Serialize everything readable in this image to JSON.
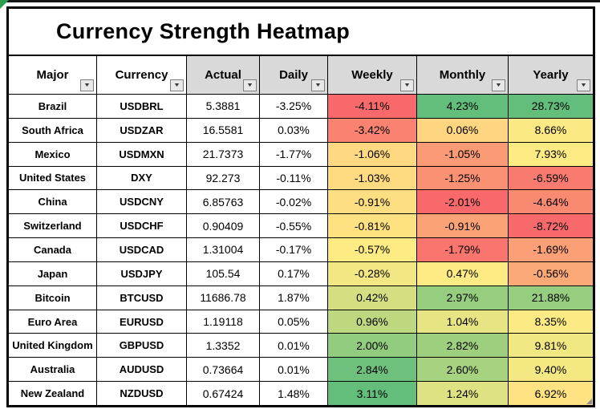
{
  "title": "Currency Strength Heatmap",
  "filter_icon": "▼",
  "colors": {
    "frame_border": "#000000",
    "header_gray": "#D9D9D9",
    "header_white": "#FFFFFF",
    "sheet_corner_green": "#2E9E50",
    "scale_negative": "#F8696B",
    "scale_neutral": "#FFEB84",
    "scale_positive": "#63BE7B"
  },
  "columns": [
    {
      "key": "major",
      "label": "Major",
      "bg": "#FFFFFF"
    },
    {
      "key": "currency",
      "label": "Currency",
      "bg": "#FFFFFF"
    },
    {
      "key": "actual",
      "label": "Actual",
      "bg": "#D9D9D9"
    },
    {
      "key": "daily",
      "label": "Daily",
      "bg": "#D9D9D9"
    },
    {
      "key": "weekly",
      "label": "Weekly",
      "bg": "#D9D9D9"
    },
    {
      "key": "monthly",
      "label": "Monthly",
      "bg": "#D9D9D9"
    },
    {
      "key": "yearly",
      "label": "Yearly",
      "bg": "#D9D9D9"
    }
  ],
  "rows": [
    {
      "major": "Brazil",
      "currency": "USDBRL",
      "actual": "5.3881",
      "daily": "-3.25%",
      "weekly": "-4.11%",
      "weekly_bg": "#F8696B",
      "monthly": "4.23%",
      "monthly_bg": "#63BE7B",
      "yearly": "28.73%",
      "yearly_bg": "#63BE7B"
    },
    {
      "major": "South Africa",
      "currency": "USDZAR",
      "actual": "16.5581",
      "daily": "0.03%",
      "weekly": "-3.42%",
      "weekly_bg": "#F98270",
      "monthly": "0.06%",
      "monthly_bg": "#FED580",
      "yearly": "8.66%",
      "yearly_bg": "#FAE984"
    },
    {
      "major": "Mexico",
      "currency": "USDMXN",
      "actual": "21.7373",
      "daily": "-1.77%",
      "weekly": "-1.06%",
      "weekly_bg": "#FED981",
      "monthly": "-1.05%",
      "monthly_bg": "#FB9B75",
      "yearly": "7.93%",
      "yearly_bg": "#FFEB84"
    },
    {
      "major": "United States",
      "currency": "DXY",
      "actual": "92.273",
      "daily": "-0.11%",
      "weekly": "-1.03%",
      "weekly_bg": "#FEDA81",
      "monthly": "-1.25%",
      "monthly_bg": "#FA9173",
      "yearly": "-6.59%",
      "yearly_bg": "#F97A6E"
    },
    {
      "major": "China",
      "currency": "USDCNY",
      "actual": "6.85763",
      "daily": "-0.02%",
      "weekly": "-0.91%",
      "weekly_bg": "#FEDE82",
      "monthly": "-2.01%",
      "monthly_bg": "#F8696B",
      "yearly": "-4.64%",
      "yearly_bg": "#FA8971"
    },
    {
      "major": "Switzerland",
      "currency": "USDCHF",
      "actual": "0.90409",
      "daily": "-0.55%",
      "weekly": "-0.81%",
      "weekly_bg": "#FEE282",
      "monthly": "-0.91%",
      "monthly_bg": "#FBA376",
      "yearly": "-8.72%",
      "yearly_bg": "#F8696B"
    },
    {
      "major": "Canada",
      "currency": "USDCAD",
      "actual": "1.31004",
      "daily": "-0.17%",
      "weekly": "-0.57%",
      "weekly_bg": "#FFEB84",
      "monthly": "-1.79%",
      "monthly_bg": "#F9756D",
      "yearly": "-1.69%",
      "yearly_bg": "#FBA076"
    },
    {
      "major": "Japan",
      "currency": "USDJPY",
      "actual": "105.54",
      "daily": "0.17%",
      "weekly": "-0.28%",
      "weekly_bg": "#F3E783",
      "monthly": "0.47%",
      "monthly_bg": "#FFEB84",
      "yearly": "-0.56%",
      "yearly_bg": "#FBA977"
    },
    {
      "major": "Bitcoin",
      "currency": "BTCUSD",
      "actual": "11686.78",
      "daily": "1.87%",
      "weekly": "0.42%",
      "weekly_bg": "#D5DF82",
      "monthly": "2.97%",
      "monthly_bg": "#97CD7E",
      "yearly": "21.88%",
      "yearly_bg": "#96CD7E"
    },
    {
      "major": "Euro Area",
      "currency": "EURUSD",
      "actual": "1.19118",
      "daily": "0.05%",
      "weekly": "0.96%",
      "weekly_bg": "#BED880",
      "monthly": "1.04%",
      "monthly_bg": "#E7E483",
      "yearly": "8.35%",
      "yearly_bg": "#FCEA84"
    },
    {
      "major": "United Kingdom",
      "currency": "GBPUSD",
      "actual": "1.3352",
      "daily": "0.01%",
      "weekly": "2.00%",
      "weekly_bg": "#92CC7E",
      "monthly": "2.82%",
      "monthly_bg": "#9DCF7E",
      "yearly": "9.81%",
      "yearly_bg": "#F1E783"
    },
    {
      "major": "Australia",
      "currency": "AUDUSD",
      "actual": "0.73664",
      "daily": "0.01%",
      "weekly": "2.84%",
      "weekly_bg": "#6EC17C",
      "monthly": "2.60%",
      "monthly_bg": "#A7D27F",
      "yearly": "9.40%",
      "yearly_bg": "#F4E883"
    },
    {
      "major": "New Zealand",
      "currency": "NZDUSD",
      "actual": "0.67424",
      "daily": "1.48%",
      "weekly": "3.11%",
      "weekly_bg": "#63BE7B",
      "monthly": "1.24%",
      "monthly_bg": "#DFE282",
      "yearly": "6.92%",
      "yearly_bg": "#FFE382"
    }
  ],
  "chart_data": {
    "type": "heatmap",
    "title": "Currency Strength Heatmap",
    "columns": [
      "Major",
      "Currency",
      "Actual",
      "Daily",
      "Weekly",
      "Monthly",
      "Yearly"
    ],
    "value_unit_for_changes": "%",
    "rows": [
      [
        "Brazil",
        "USDBRL",
        5.3881,
        -3.25,
        -4.11,
        4.23,
        28.73
      ],
      [
        "South Africa",
        "USDZAR",
        16.5581,
        0.03,
        -3.42,
        0.06,
        8.66
      ],
      [
        "Mexico",
        "USDMXN",
        21.7373,
        -1.77,
        -1.06,
        -1.05,
        7.93
      ],
      [
        "United States",
        "DXY",
        92.273,
        -0.11,
        -1.03,
        -1.25,
        -6.59
      ],
      [
        "China",
        "USDCNY",
        6.85763,
        -0.02,
        -0.91,
        -2.01,
        -4.64
      ],
      [
        "Switzerland",
        "USDCHF",
        0.90409,
        -0.55,
        -0.81,
        -0.91,
        -8.72
      ],
      [
        "Canada",
        "USDCAD",
        1.31004,
        -0.17,
        -0.57,
        -1.79,
        -1.69
      ],
      [
        "Japan",
        "USDJPY",
        105.54,
        0.17,
        -0.28,
        0.47,
        -0.56
      ],
      [
        "Bitcoin",
        "BTCUSD",
        11686.78,
        1.87,
        0.42,
        2.97,
        21.88
      ],
      [
        "Euro Area",
        "EURUSD",
        1.19118,
        0.05,
        0.96,
        1.04,
        8.35
      ],
      [
        "United Kingdom",
        "GBPUSD",
        1.3352,
        0.01,
        2.0,
        2.82,
        9.81
      ],
      [
        "Australia",
        "AUDUSD",
        0.73664,
        0.01,
        2.84,
        2.6,
        9.4
      ],
      [
        "New Zealand",
        "NZDUSD",
        0.67424,
        1.48,
        3.11,
        1.24,
        6.92
      ]
    ],
    "color_scale": {
      "min_color": "#F8696B",
      "mid_color": "#FFEB84",
      "max_color": "#63BE7B",
      "applied_to_columns": [
        "Weekly",
        "Monthly",
        "Yearly"
      ],
      "scope": "per-column min/median/max"
    },
    "legend_position": "none",
    "grid": true
  }
}
